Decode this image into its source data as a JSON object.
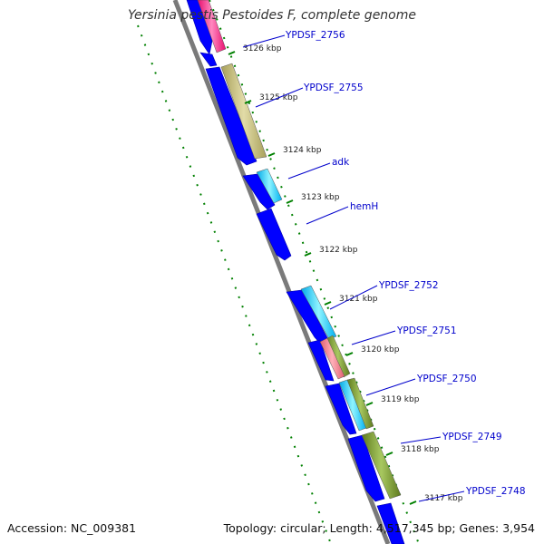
{
  "title": "Yersinia pestis Pestoides F, complete genome",
  "accession": "Accession: NC_009381",
  "topology_line": "Topology: circular; Length: 4,517,345 bp; Genes: 3,954",
  "colors": {
    "backbone": "#808080",
    "gene_forward": "#0000ff",
    "dots": "#008000",
    "label": "#0000cc",
    "tick_text": "#222222"
  },
  "ticks": [
    {
      "label": "3126 kbp"
    },
    {
      "label": "3125 kbp"
    },
    {
      "label": "3124 kbp"
    },
    {
      "label": "3123 kbp"
    },
    {
      "label": "3122 kbp"
    },
    {
      "label": "3121 kbp"
    },
    {
      "label": "3120 kbp"
    },
    {
      "label": "3119 kbp"
    },
    {
      "label": "3118 kbp"
    },
    {
      "label": "3117 kbp"
    }
  ],
  "gene_labels": [
    {
      "label": "YPDSF_2756"
    },
    {
      "label": "YPDSF_2755"
    },
    {
      "label": "adk"
    },
    {
      "label": "hemH"
    },
    {
      "label": "YPDSF_2752"
    },
    {
      "label": "YPDSF_2751"
    },
    {
      "label": "YPDSF_2750"
    },
    {
      "label": "YPDSF_2749"
    },
    {
      "label": "YPDSF_2748"
    }
  ]
}
